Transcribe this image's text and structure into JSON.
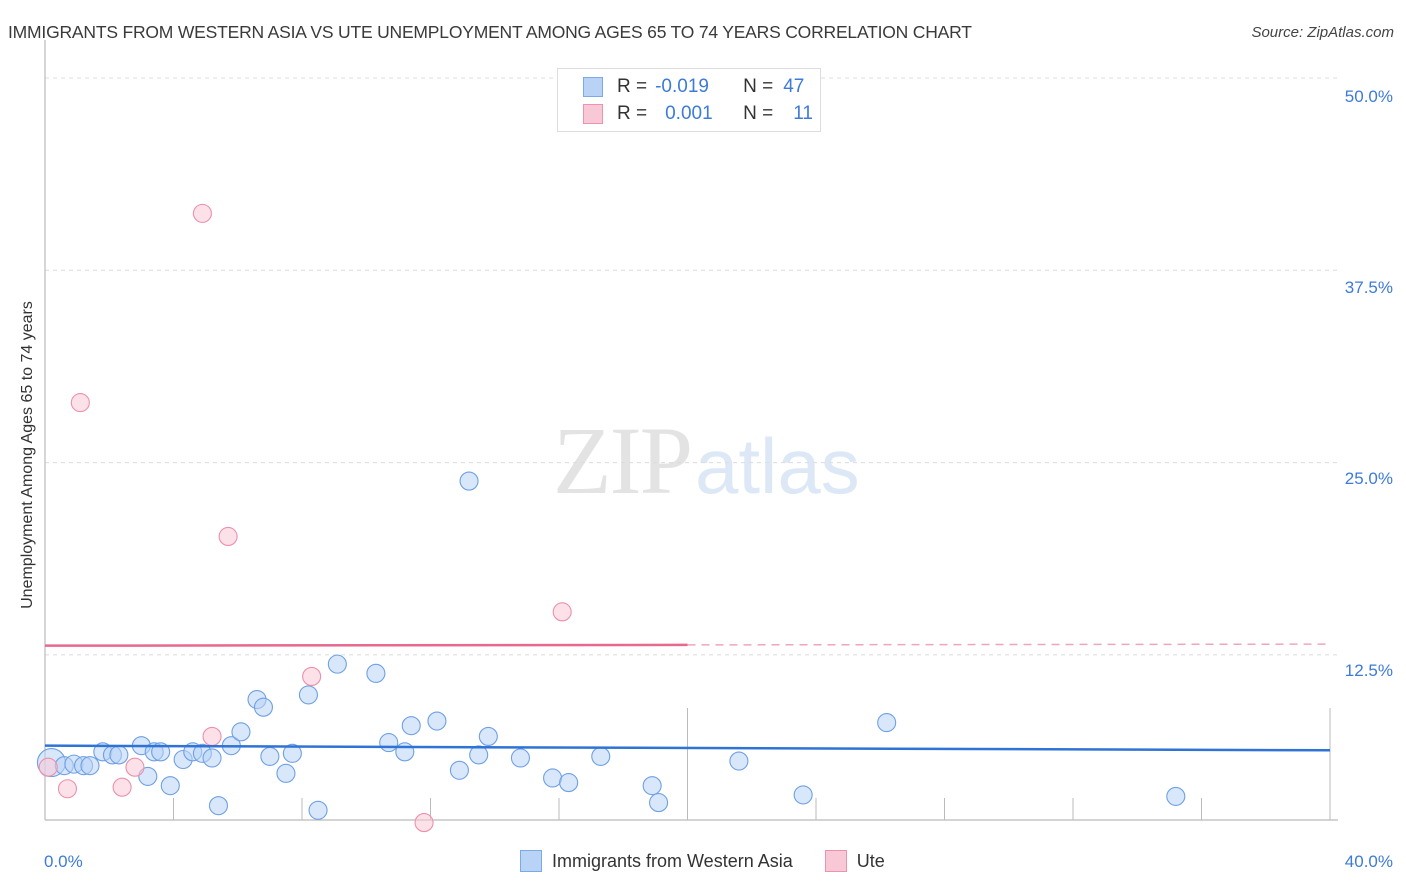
{
  "header": {
    "title": "IMMIGRANTS FROM WESTERN ASIA VS UTE UNEMPLOYMENT AMONG AGES 65 TO 74 YEARS CORRELATION CHART",
    "source": "Source: ZipAtlas.com"
  },
  "watermark": {
    "zip": "ZIP",
    "atlas": "atlas"
  },
  "legend_top": {
    "rows": [
      {
        "r_label": "R =",
        "r_value": "-0.019",
        "n_label": "N =",
        "n_value": "47",
        "color": "#b8d3f5",
        "border": "#7aaae8"
      },
      {
        "r_label": "R =",
        "r_value": "0.001",
        "n_label": "N =",
        "n_value": "11",
        "color": "#f9c8d6",
        "border": "#ee93ae"
      }
    ]
  },
  "legend_bottom": {
    "items": [
      {
        "label": "Immigrants from Western Asia",
        "color": "#b8d3f5",
        "border": "#7aaae8"
      },
      {
        "label": "Ute",
        "color": "#f9c8d6",
        "border": "#ee93ae"
      }
    ]
  },
  "axes": {
    "ylabel": "Unemployment Among Ages 65 to 74 years",
    "y_ticks": [
      "50.0%",
      "37.5%",
      "25.0%",
      "12.5%"
    ],
    "x_ticks": [
      "0.0%",
      "40.0%"
    ]
  },
  "chart_data": {
    "type": "scatter",
    "title": "IMMIGRANTS FROM WESTERN ASIA VS UTE UNEMPLOYMENT AMONG AGES 65 TO 74 YEARS CORRELATION CHART",
    "xlabel": "",
    "ylabel": "Unemployment Among Ages 65 to 74 years",
    "xlim": [
      0,
      40
    ],
    "ylim": [
      1.7,
      51
    ],
    "x_ticks": [
      0,
      40
    ],
    "y_ticks": [
      12.5,
      25.0,
      37.5,
      50.0
    ],
    "grid": "horizontal dashed",
    "legend_position": "top-center and bottom",
    "series": [
      {
        "name": "Immigrants from Western Asia",
        "color": "#7aaae8",
        "R": -0.019,
        "N": 47,
        "trend": {
          "x": [
            0,
            40
          ],
          "y": [
            6.6,
            6.3
          ]
        },
        "points": [
          [
            0.2,
            5.5
          ],
          [
            0.6,
            5.3
          ],
          [
            0.9,
            5.4
          ],
          [
            1.2,
            5.3
          ],
          [
            1.4,
            5.3
          ],
          [
            1.8,
            6.2
          ],
          [
            2.1,
            6.0
          ],
          [
            2.3,
            6.0
          ],
          [
            3.0,
            6.6
          ],
          [
            3.2,
            4.6
          ],
          [
            3.4,
            6.2
          ],
          [
            3.6,
            6.2
          ],
          [
            3.9,
            4.0
          ],
          [
            4.3,
            5.7
          ],
          [
            4.6,
            6.2
          ],
          [
            4.9,
            6.1
          ],
          [
            5.2,
            5.8
          ],
          [
            5.4,
            2.7
          ],
          [
            5.8,
            6.6
          ],
          [
            6.1,
            7.5
          ],
          [
            6.6,
            9.6
          ],
          [
            6.8,
            9.1
          ],
          [
            7.0,
            5.9
          ],
          [
            7.5,
            4.8
          ],
          [
            7.7,
            6.1
          ],
          [
            8.2,
            9.9
          ],
          [
            8.5,
            2.4
          ],
          [
            9.1,
            11.9
          ],
          [
            10.3,
            11.3
          ],
          [
            10.7,
            6.8
          ],
          [
            11.2,
            6.2
          ],
          [
            11.4,
            7.9
          ],
          [
            12.2,
            8.2
          ],
          [
            12.9,
            5.0
          ],
          [
            13.2,
            23.8
          ],
          [
            13.5,
            6.0
          ],
          [
            13.8,
            7.2
          ],
          [
            14.8,
            5.8
          ],
          [
            15.8,
            4.5
          ],
          [
            16.3,
            4.2
          ],
          [
            17.3,
            5.9
          ],
          [
            18.9,
            4.0
          ],
          [
            19.1,
            2.9
          ],
          [
            21.6,
            5.6
          ],
          [
            23.6,
            3.4
          ],
          [
            26.2,
            8.1
          ],
          [
            35.2,
            3.3
          ]
        ]
      },
      {
        "name": "Ute",
        "color": "#ee93ae",
        "R": 0.001,
        "N": 11,
        "trend": {
          "x": [
            0,
            40
          ],
          "y": [
            13.1,
            13.2
          ],
          "solid_until_x": 20.0
        },
        "points": [
          [
            0.1,
            5.2
          ],
          [
            0.7,
            3.8
          ],
          [
            1.1,
            28.9
          ],
          [
            2.4,
            3.9
          ],
          [
            2.8,
            5.2
          ],
          [
            4.9,
            41.2
          ],
          [
            5.2,
            7.2
          ],
          [
            5.7,
            20.2
          ],
          [
            8.3,
            11.1
          ],
          [
            11.8,
            1.6
          ],
          [
            16.1,
            15.3
          ]
        ]
      }
    ]
  }
}
